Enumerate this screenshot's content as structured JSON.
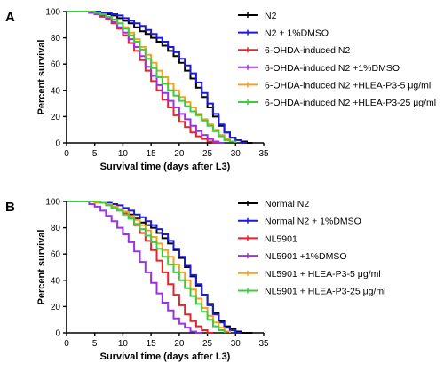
{
  "panels": [
    {
      "label": "A",
      "chart_data": {
        "type": "line",
        "xlabel": "Survival time (days after L3)",
        "ylabel": "Percent survival",
        "xlim": [
          0,
          35
        ],
        "ylim": [
          0,
          100
        ],
        "xticks": [
          "0",
          "5",
          "10",
          "15",
          "20",
          "25",
          "30",
          "35"
        ],
        "yticks": [
          "0",
          "20",
          "40",
          "60",
          "80",
          "100"
        ],
        "grid": false,
        "legend": "right",
        "step": true,
        "series": [
          {
            "name": "N2",
            "color": "#000000",
            "x": [
              0,
              4,
              6,
              8,
              9,
              10,
              11,
              12,
              13,
              14,
              15,
              16,
              17,
              18,
              19,
              20,
              21,
              22,
              23,
              24,
              25,
              26,
              27,
              28,
              29,
              30,
              31,
              32,
              33
            ],
            "y": [
              100,
              99,
              98,
              97,
              95,
              93,
              91,
              88,
              85,
              83,
              80,
              77,
              74,
              70,
              66,
              61,
              55,
              49,
              42,
              35,
              27,
              20,
              13,
              8,
              4,
              2,
              1,
              0,
              0
            ]
          },
          {
            "name": "N2 + 1%DMSO",
            "color": "#1a1ad8",
            "x": [
              0,
              6,
              8,
              9,
              10,
              11,
              12,
              13,
              14,
              15,
              16,
              17,
              18,
              19,
              20,
              21,
              22,
              23,
              24,
              25,
              26,
              27,
              28,
              29,
              30,
              31,
              32
            ],
            "y": [
              100,
              99,
              98,
              97,
              95,
              93,
              91,
              89,
              86,
              83,
              80,
              77,
              73,
              69,
              64,
              59,
              53,
              46,
              38,
              30,
              22,
              14,
              8,
              4,
              2,
              0,
              0
            ]
          },
          {
            "name": "6-OHDA-induced N2",
            "color": "#e8222a",
            "x": [
              0,
              4,
              5,
              6,
              7,
              8,
              9,
              10,
              11,
              12,
              13,
              14,
              15,
              16,
              17,
              18,
              19,
              20,
              21,
              22,
              23,
              24,
              25,
              26,
              27
            ],
            "y": [
              100,
              99,
              98,
              96,
              94,
              91,
              87,
              82,
              76,
              70,
              63,
              55,
              47,
              40,
              33,
              27,
              21,
              16,
              12,
              8,
              5,
              3,
              1,
              0,
              0
            ]
          },
          {
            "name": "6-OHDA-induced N2 +1%DMSO",
            "color": "#9b30e6",
            "x": [
              0,
              4,
              5,
              6,
              7,
              8,
              9,
              10,
              11,
              12,
              13,
              14,
              15,
              16,
              17,
              18,
              19,
              20,
              21,
              22,
              23,
              24,
              25,
              26,
              27,
              28
            ],
            "y": [
              100,
              99,
              98,
              97,
              95,
              92,
              88,
              84,
              79,
              73,
              66,
              58,
              51,
              44,
              38,
              32,
              27,
              22,
              18,
              13,
              9,
              6,
              3,
              1,
              0,
              0
            ]
          },
          {
            "name": "6-OHDA-induced N2 +HLEA-P3-5 μg/ml",
            "color": "#f5a21e",
            "x": [
              0,
              5,
              6,
              7,
              8,
              9,
              10,
              11,
              12,
              13,
              14,
              15,
              16,
              17,
              18,
              19,
              20,
              21,
              22,
              23,
              24,
              25,
              26,
              27,
              28,
              29,
              30
            ],
            "y": [
              100,
              99,
              98,
              96,
              94,
              91,
              88,
              84,
              79,
              73,
              67,
              61,
              55,
              50,
              45,
              40,
              35,
              31,
              27,
              22,
              18,
              14,
              10,
              6,
              3,
              1,
              0
            ]
          },
          {
            "name": "6-OHDA-induced N2 +HLEA-P3-25 μg/ml",
            "color": "#3ecb3e",
            "x": [
              0,
              5,
              6,
              7,
              8,
              9,
              10,
              11,
              12,
              13,
              14,
              15,
              16,
              17,
              18,
              19,
              20,
              21,
              22,
              23,
              24,
              25,
              26,
              27,
              28,
              29,
              30
            ],
            "y": [
              100,
              99,
              98,
              96,
              94,
              91,
              87,
              82,
              77,
              71,
              64,
              57,
              50,
              45,
              40,
              36,
              32,
              28,
              24,
              21,
              17,
              13,
              9,
              5,
              2,
              1,
              0
            ]
          }
        ]
      }
    },
    {
      "label": "B",
      "chart_data": {
        "type": "line",
        "xlabel": "Survival time (days after L3)",
        "ylabel": "Percent survival",
        "xlim": [
          0,
          35
        ],
        "ylim": [
          0,
          100
        ],
        "xticks": [
          "0",
          "5",
          "10",
          "15",
          "20",
          "25",
          "30",
          "35"
        ],
        "yticks": [
          "0",
          "20",
          "40",
          "60",
          "80",
          "100"
        ],
        "grid": false,
        "legend": "right",
        "step": true,
        "series": [
          {
            "name": "Normal N2",
            "color": "#000000",
            "x": [
              0,
              5,
              7,
              8,
              9,
              10,
              11,
              12,
              13,
              14,
              15,
              16,
              17,
              18,
              19,
              20,
              21,
              22,
              23,
              24,
              25,
              26,
              27,
              28,
              29,
              30,
              31,
              32,
              33
            ],
            "y": [
              100,
              99,
              98,
              96,
              94,
              92,
              90,
              87,
              84,
              82,
              80,
              76,
              72,
              68,
              63,
              57,
              50,
              43,
              36,
              29,
              22,
              15,
              9,
              5,
              3,
              1,
              0,
              0,
              0
            ]
          },
          {
            "name": "Normal N2 + 1%DMSO",
            "color": "#1a1ad8",
            "x": [
              0,
              6,
              8,
              9,
              10,
              11,
              12,
              13,
              14,
              15,
              16,
              17,
              18,
              19,
              20,
              21,
              22,
              23,
              24,
              25,
              26,
              27,
              28,
              29,
              30,
              31
            ],
            "y": [
              100,
              99,
              98,
              97,
              95,
              93,
              90,
              88,
              85,
              82,
              79,
              75,
              70,
              64,
              58,
              51,
              44,
              37,
              29,
              21,
              14,
              8,
              4,
              2,
              0,
              0
            ]
          },
          {
            "name": "NL5901",
            "color": "#e8222a",
            "x": [
              0,
              6,
              7,
              8,
              9,
              10,
              11,
              12,
              13,
              14,
              15,
              16,
              17,
              18,
              19,
              20,
              21,
              22,
              23,
              24,
              25,
              26
            ],
            "y": [
              100,
              99,
              98,
              96,
              94,
              91,
              87,
              82,
              76,
              70,
              63,
              55,
              46,
              37,
              29,
              21,
              14,
              9,
              5,
              2,
              0,
              0
            ]
          },
          {
            "name": "NL5901 +1%DMSO",
            "color": "#9b30e6",
            "x": [
              0,
              4,
              5,
              6,
              7,
              8,
              9,
              10,
              11,
              12,
              13,
              14,
              15,
              16,
              17,
              18,
              19,
              20,
              21,
              22,
              23,
              24
            ],
            "y": [
              100,
              98,
              96,
              93,
              89,
              85,
              80,
              75,
              69,
              62,
              54,
              46,
              38,
              30,
              23,
              17,
              11,
              7,
              4,
              1,
              0,
              0
            ]
          },
          {
            "name": "NL5901 + HLEA-P3-5 μg/ml",
            "color": "#f5a21e",
            "x": [
              0,
              5,
              7,
              8,
              9,
              10,
              11,
              12,
              13,
              14,
              15,
              16,
              17,
              18,
              19,
              20,
              21,
              22,
              23,
              24,
              25,
              26,
              27,
              28,
              29
            ],
            "y": [
              100,
              99,
              98,
              96,
              94,
              92,
              89,
              86,
              82,
              78,
              73,
              68,
              63,
              58,
              52,
              46,
              40,
              33,
              26,
              19,
              13,
              8,
              4,
              1,
              0
            ]
          },
          {
            "name": "NL5901 + HLEA-P3-25 μg/ml",
            "color": "#3ecb3e",
            "x": [
              0,
              6,
              7,
              8,
              9,
              10,
              11,
              12,
              13,
              14,
              15,
              16,
              17,
              18,
              19,
              20,
              21,
              22,
              23,
              24,
              25,
              26,
              27,
              28
            ],
            "y": [
              100,
              99,
              97,
              95,
              93,
              90,
              87,
              83,
              79,
              74,
              69,
              64,
              58,
              52,
              46,
              40,
              34,
              28,
              22,
              16,
              10,
              5,
              2,
              0
            ]
          }
        ]
      }
    }
  ]
}
